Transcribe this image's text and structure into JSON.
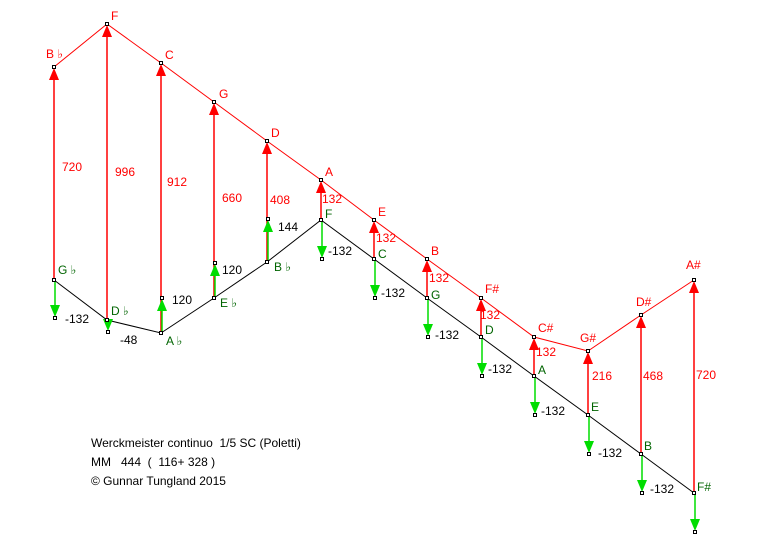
{
  "colors": {
    "upper_line": "#ff0000",
    "lower_line": "#000000",
    "green_arrow": "#00dd00",
    "lower_label": "#006400",
    "red_value": "#ff0000",
    "black_value": "#000000"
  },
  "columns": [
    {
      "upper": "B ♭",
      "lower": "G ♭",
      "red_value": "720",
      "green_value": "-132"
    },
    {
      "upper": "F",
      "lower": "D ♭",
      "red_value": "996",
      "green_value": "-48"
    },
    {
      "upper": "C",
      "lower": "A ♭",
      "red_value": "912",
      "green_value": "120"
    },
    {
      "upper": "G",
      "lower": "E ♭",
      "red_value": "660",
      "green_value": "120"
    },
    {
      "upper": "D",
      "lower": "B ♭",
      "red_value": "408",
      "green_value": "144"
    },
    {
      "upper": "A",
      "lower": "F",
      "red_value": "132",
      "green_value": "-132"
    },
    {
      "upper": "E",
      "lower": "C",
      "red_value": "132",
      "green_value": "-132"
    },
    {
      "upper": "B",
      "lower": "G",
      "red_value": "132",
      "green_value": "-132"
    },
    {
      "upper": "F#",
      "lower": "D",
      "red_value": "132",
      "green_value": "-132"
    },
    {
      "upper": "C#",
      "lower": "A",
      "red_value": "132",
      "green_value": "-132"
    },
    {
      "upper": "G#",
      "lower": "E",
      "red_value": "216",
      "green_value": "-132"
    },
    {
      "upper": "D#",
      "lower": "B",
      "red_value": "468",
      "green_value": "-132"
    },
    {
      "upper": "A#",
      "lower": "F#",
      "red_value": "720",
      "green_value": ""
    }
  ],
  "credits": {
    "line1": "Werckmeister continuo  1/5 SC (Poletti)",
    "line2": "MM   444  (  116+ 328 )",
    "line3": "© Gunnar Tungland 2015"
  }
}
